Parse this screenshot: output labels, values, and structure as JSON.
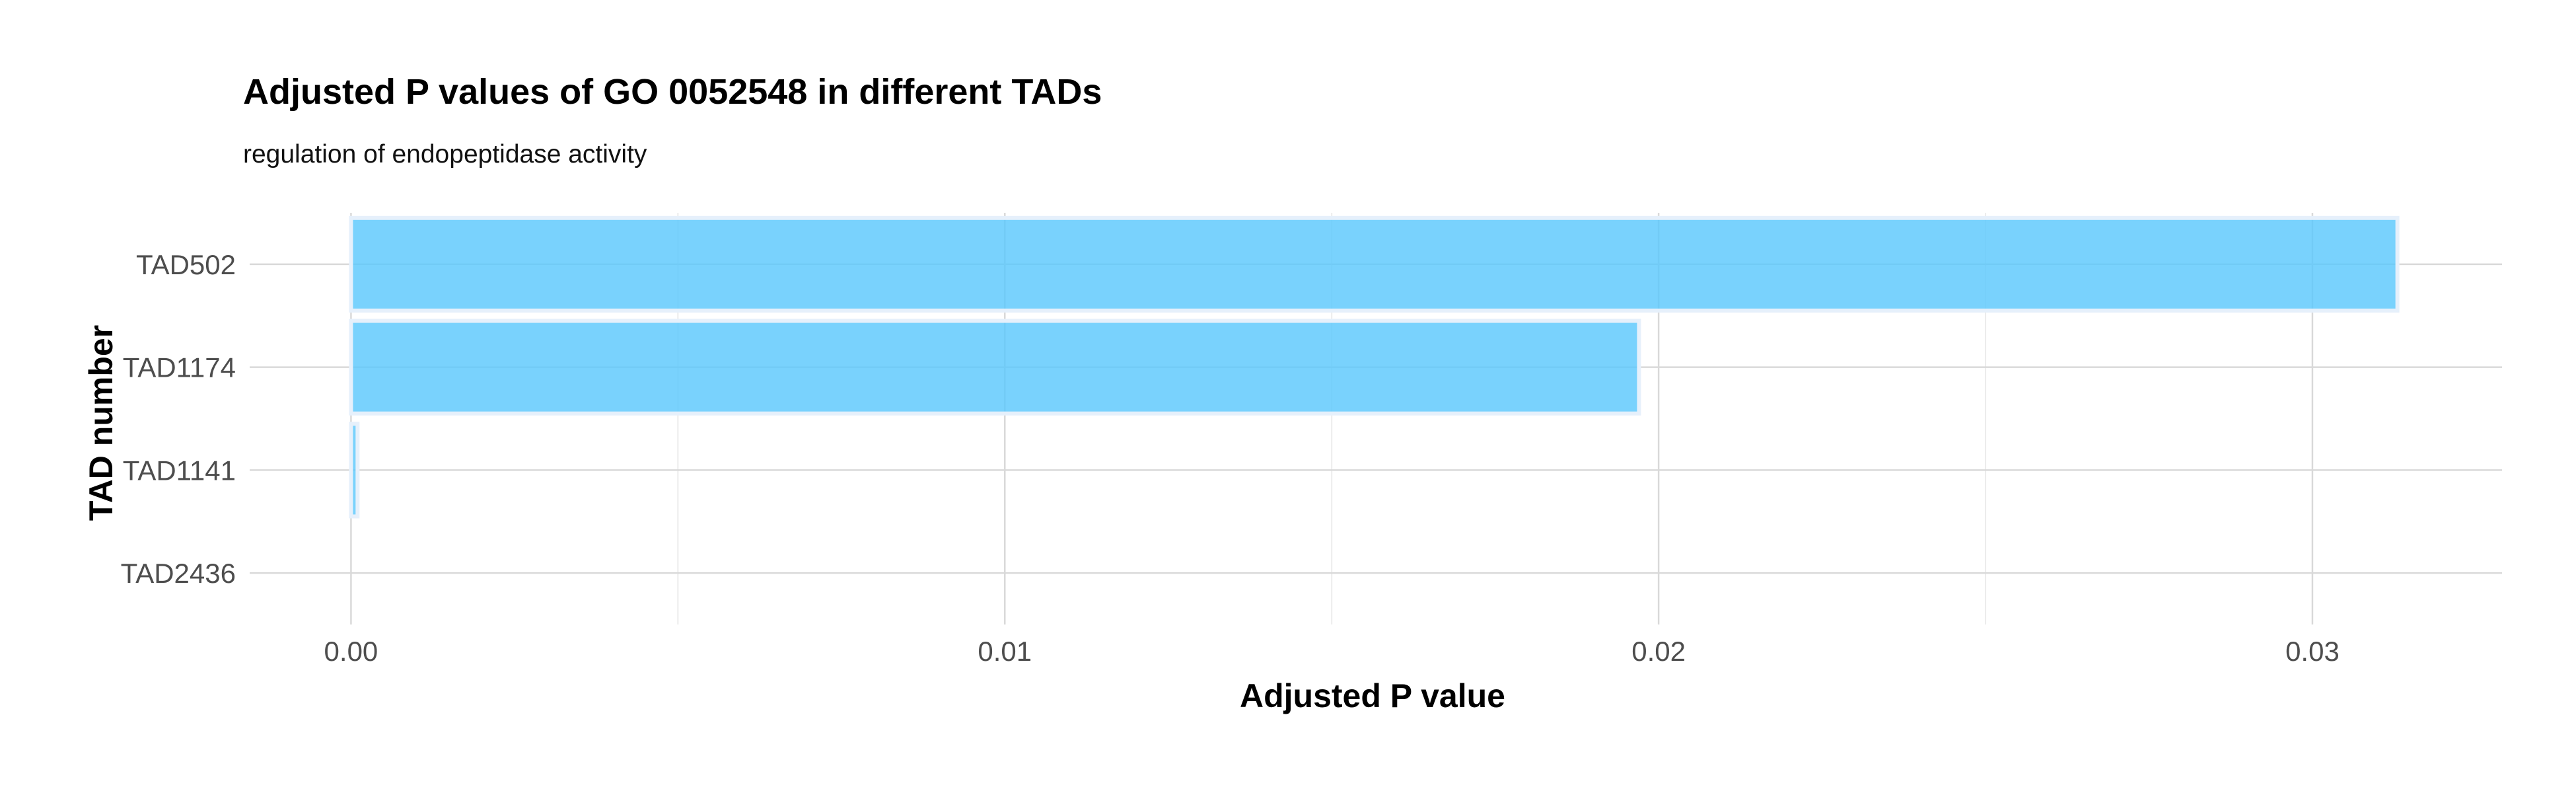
{
  "chart_data": {
    "type": "bar",
    "orientation": "horizontal",
    "title": "Adjusted P values of GO 0052548 in different TADs",
    "subtitle": "regulation of endopeptidase activity",
    "xlabel": "Adjusted P value",
    "ylabel": "TAD number",
    "categories": [
      "TAD502",
      "TAD1174",
      "TAD1141",
      "TAD2436"
    ],
    "values": [
      0.0313,
      0.0197,
      0.0001,
      0.0
    ],
    "xlim": [
      -0.00155,
      0.0329
    ],
    "xticks": [
      0,
      0.01,
      0.02,
      0.03
    ],
    "xtick_labels": [
      "0.00",
      "0.01",
      "0.02",
      "0.03"
    ],
    "grid": true,
    "legend": "none",
    "bar_color": "#5bc8fc",
    "bar_outline_color": "#e6f0fb",
    "grid_color": "#d9d9d9"
  }
}
